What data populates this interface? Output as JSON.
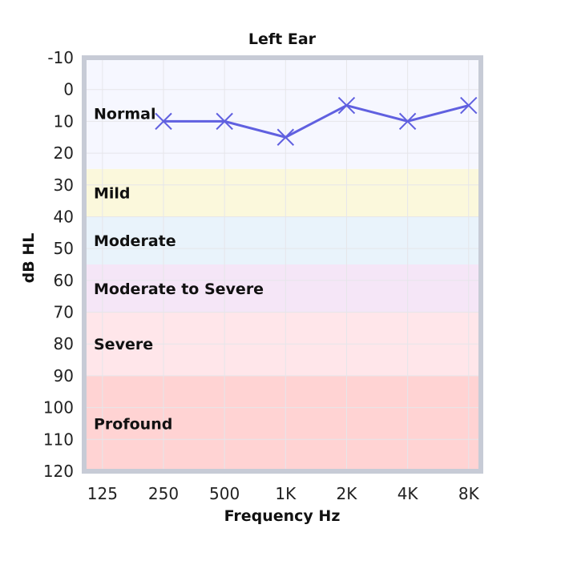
{
  "chart_data": {
    "type": "line",
    "title": "Left Ear",
    "xlabel": "Frequency Hz",
    "ylabel": "dB HL",
    "categories": [
      "125",
      "250",
      "500",
      "1K",
      "2K",
      "4K",
      "8K"
    ],
    "yticks": [
      -10,
      0,
      10,
      20,
      30,
      40,
      50,
      60,
      70,
      80,
      90,
      100,
      110,
      120
    ],
    "ylim": [
      -10,
      120
    ],
    "y_inverted": true,
    "grid": true,
    "series": [
      {
        "marker": "x",
        "color": "#6060e0",
        "x": [
          "250",
          "500",
          "1K",
          "2K",
          "4K",
          "8K"
        ],
        "values": [
          10,
          10,
          15,
          5,
          10,
          5
        ]
      }
    ],
    "bands": [
      {
        "label": "Normal",
        "from": -10,
        "to": 25,
        "color": "#f6f7ff"
      },
      {
        "label": "Mild",
        "from": 25,
        "to": 40,
        "color": "#fbf8dc"
      },
      {
        "label": "Moderate",
        "from": 40,
        "to": 55,
        "color": "#e9f3fb"
      },
      {
        "label": "Moderate to Severe",
        "from": 55,
        "to": 70,
        "color": "#f5e6f7"
      },
      {
        "label": "Severe",
        "from": 70,
        "to": 90,
        "color": "#ffe6ea"
      },
      {
        "label": "Profound",
        "from": 90,
        "to": 120,
        "color": "#ffd3d3"
      }
    ]
  }
}
